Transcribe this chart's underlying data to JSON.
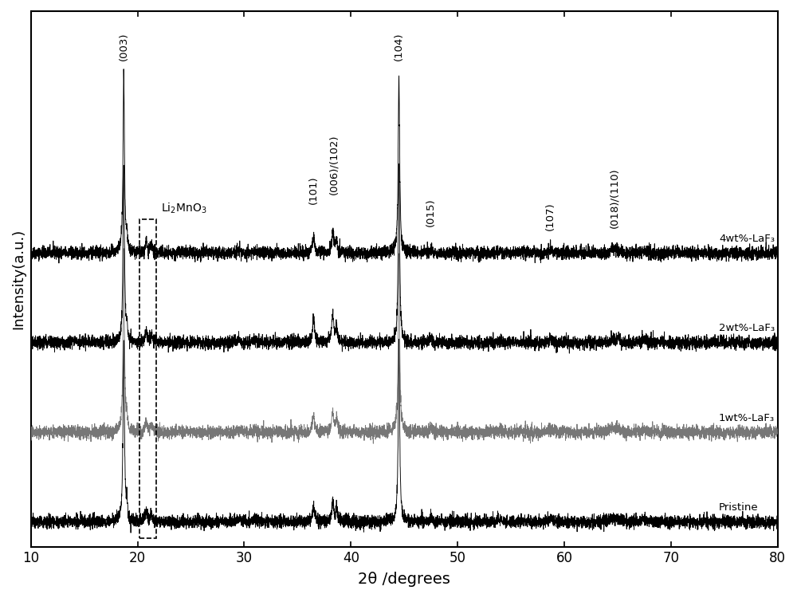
{
  "x_min": 10,
  "x_max": 80,
  "xlabel": "2θ /degrees",
  "ylabel": "Intensity(a.u.)",
  "background_color": "#ffffff",
  "series_labels": [
    "4wt%-LaF₃",
    "2wt%-LaF₃",
    "1wt%-LaF₃",
    "Pristine"
  ],
  "series_colors": [
    "#000000",
    "#000000",
    "#777777",
    "#000000"
  ],
  "peak_positions": [
    18.7,
    36.5,
    38.4,
    44.5,
    47.5,
    58.7,
    64.7
  ],
  "peak_label_names": [
    "(003)",
    "(101)",
    "(006)/(102)",
    "(104)",
    "(015)",
    "(107)",
    "(018)/(110)"
  ],
  "offsets": [
    3.0,
    2.0,
    1.0,
    0.0
  ],
  "noise_scale": 0.035,
  "seed": 42,
  "figsize": [
    10.0,
    7.5
  ],
  "dpi": 100
}
